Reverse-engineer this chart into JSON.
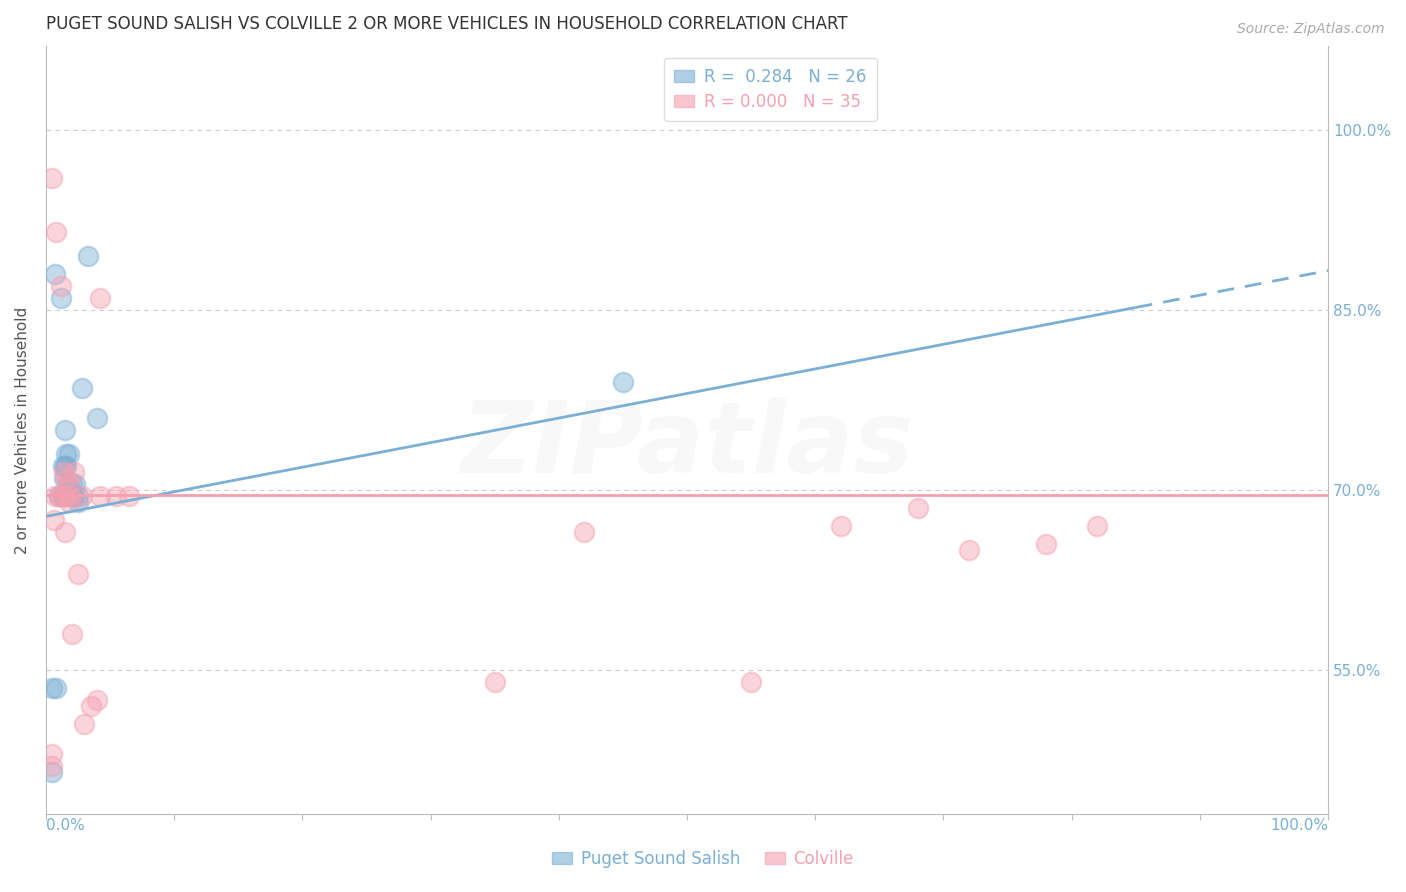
{
  "title": "PUGET SOUND SALISH VS COLVILLE 2 OR MORE VEHICLES IN HOUSEHOLD CORRELATION CHART",
  "source": "Source: ZipAtlas.com",
  "ylabel": "2 or more Vehicles in Household",
  "ytick_labels": [
    "100.0%",
    "85.0%",
    "70.0%",
    "55.0%"
  ],
  "ytick_values": [
    1.0,
    0.85,
    0.7,
    0.55
  ],
  "xlim": [
    0.0,
    1.0
  ],
  "ylim": [
    0.43,
    1.07
  ],
  "blue_color": "#7bafd4",
  "pink_color": "#f4a0b0",
  "blue_label": "Puget Sound Salish",
  "pink_label": "Colville",
  "R_blue": 0.284,
  "N_blue": 26,
  "R_pink": 0.0,
  "N_pink": 35,
  "blue_regression_x0": 0.0,
  "blue_regression_y0": 0.678,
  "blue_regression_x1": 0.85,
  "blue_regression_y1": 0.852,
  "blue_regression_dashed_x0": 0.85,
  "blue_regression_dashed_x1": 1.0,
  "pink_regression_y": 0.696,
  "blue_points_x": [
    0.005,
    0.008,
    0.01,
    0.013,
    0.013,
    0.014,
    0.014,
    0.016,
    0.016,
    0.017,
    0.018,
    0.02,
    0.02,
    0.022,
    0.025,
    0.025,
    0.028,
    0.033,
    0.005,
    0.45,
    0.007,
    0.012,
    0.015,
    0.015,
    0.023,
    0.04
  ],
  "blue_points_y": [
    0.535,
    0.535,
    0.695,
    0.72,
    0.695,
    0.71,
    0.695,
    0.73,
    0.72,
    0.705,
    0.73,
    0.705,
    0.695,
    0.695,
    0.695,
    0.69,
    0.785,
    0.895,
    0.465,
    0.79,
    0.88,
    0.86,
    0.75,
    0.72,
    0.705,
    0.76
  ],
  "pink_points_x": [
    0.005,
    0.006,
    0.007,
    0.01,
    0.012,
    0.014,
    0.014,
    0.015,
    0.015,
    0.016,
    0.017,
    0.018,
    0.019,
    0.02,
    0.022,
    0.025,
    0.028,
    0.03,
    0.035,
    0.04,
    0.042,
    0.042,
    0.055,
    0.065,
    0.35,
    0.42,
    0.55,
    0.62,
    0.68,
    0.72,
    0.78,
    0.82,
    0.008,
    0.005,
    0.005
  ],
  "pink_points_y": [
    0.96,
    0.675,
    0.695,
    0.695,
    0.87,
    0.695,
    0.715,
    0.695,
    0.665,
    0.71,
    0.705,
    0.69,
    0.695,
    0.58,
    0.715,
    0.63,
    0.695,
    0.505,
    0.52,
    0.525,
    0.695,
    0.86,
    0.695,
    0.695,
    0.54,
    0.665,
    0.54,
    0.67,
    0.685,
    0.65,
    0.655,
    0.67,
    0.915,
    0.48,
    0.47
  ],
  "marker_size": 200,
  "marker_linewidth": 1.5,
  "background_color": "#ffffff",
  "grid_color": "#cccccc",
  "spine_color": "#bbbbbb",
  "tick_color": "#7bafd4",
  "title_fontsize": 12,
  "tick_fontsize": 11,
  "ylabel_fontsize": 11,
  "source_fontsize": 10,
  "legend_fontsize": 12,
  "watermark_text": "ZIPatlas",
  "watermark_fontsize": 72,
  "watermark_alpha": 0.12
}
